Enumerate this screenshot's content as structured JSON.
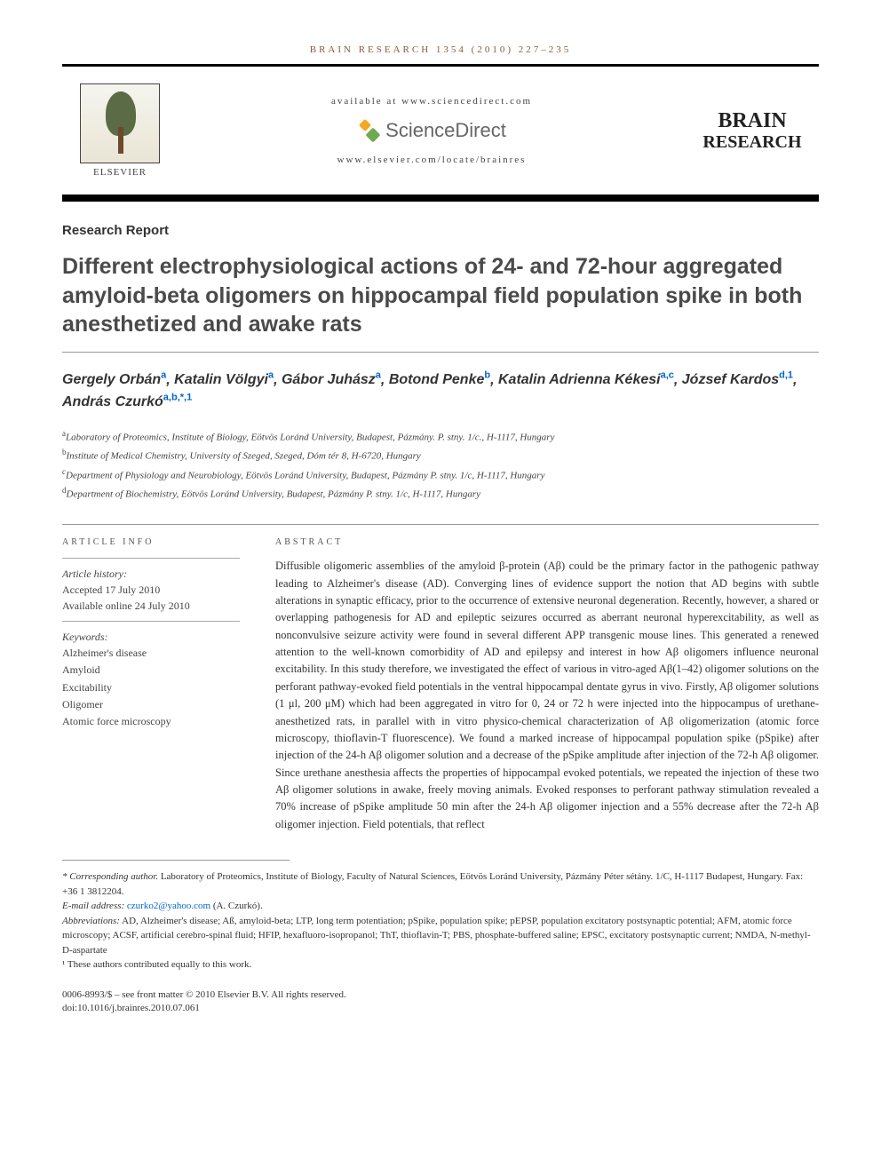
{
  "header": {
    "citation": "BRAIN RESEARCH 1354 (2010) 227–235",
    "available_at": "available at www.sciencedirect.com",
    "sciencedirect": "ScienceDirect",
    "locate": "www.elsevier.com/locate/brainres",
    "elsevier_label": "ELSEVIER",
    "journal_line1": "BRAIN",
    "journal_line2": "RESEARCH"
  },
  "article": {
    "type": "Research Report",
    "title": "Different electrophysiological actions of 24- and 72-hour aggregated amyloid-beta oligomers on hippocampal field population spike in both anesthetized and awake rats"
  },
  "authors": [
    {
      "name": "Gergely Orbán",
      "aff": "a"
    },
    {
      "name": "Katalin Völgyi",
      "aff": "a"
    },
    {
      "name": "Gábor Juhász",
      "aff": "a"
    },
    {
      "name": "Botond Penke",
      "aff": "b"
    },
    {
      "name": "Katalin Adrienna Kékesi",
      "aff": "a,c"
    },
    {
      "name": "József Kardos",
      "aff": "d,1"
    },
    {
      "name": "András Czurkó",
      "aff": "a,b,*,1"
    }
  ],
  "affiliations": [
    {
      "sup": "a",
      "text": "Laboratory of Proteomics, Institute of Biology, Eötvös Loránd University, Budapest, Pázmány. P. stny. 1/c., H-1117, Hungary"
    },
    {
      "sup": "b",
      "text": "Institute of Medical Chemistry, University of Szeged, Szeged, Dóm tér 8, H-6720, Hungary"
    },
    {
      "sup": "c",
      "text": "Department of Physiology and Neurobiology, Eötvös Loránd University, Budapest, Pázmány P. stny. 1/c, H-1117, Hungary"
    },
    {
      "sup": "d",
      "text": "Department of Biochemistry, Eötvös Loránd University, Budapest, Pázmány P. stny. 1/c, H-1117, Hungary"
    }
  ],
  "article_info": {
    "label": "ARTICLE INFO",
    "history_label": "Article history:",
    "accepted": "Accepted 17 July 2010",
    "online": "Available online 24 July 2010",
    "keywords_label": "Keywords:",
    "keywords": [
      "Alzheimer's disease",
      "Amyloid",
      "Excitability",
      "Oligomer",
      "Atomic force microscopy"
    ]
  },
  "abstract": {
    "label": "ABSTRACT",
    "text": "Diffusible oligomeric assemblies of the amyloid β-protein (Aβ) could be the primary factor in the pathogenic pathway leading to Alzheimer's disease (AD). Converging lines of evidence support the notion that AD begins with subtle alterations in synaptic efficacy, prior to the occurrence of extensive neuronal degeneration. Recently, however, a shared or overlapping pathogenesis for AD and epileptic seizures occurred as aberrant neuronal hyperexcitability, as well as nonconvulsive seizure activity were found in several different APP transgenic mouse lines. This generated a renewed attention to the well-known comorbidity of AD and epilepsy and interest in how Aβ oligomers influence neuronal excitability. In this study therefore, we investigated the effect of various in vitro-aged Aβ(1–42) oligomer solutions on the perforant pathway-evoked field potentials in the ventral hippocampal dentate gyrus in vivo. Firstly, Aβ oligomer solutions (1 μl, 200 μM) which had been aggregated in vitro for 0, 24 or 72 h were injected into the hippocampus of urethane-anesthetized rats, in parallel with in vitro physico-chemical characterization of Aβ oligomerization (atomic force microscopy, thioflavin-T fluorescence). We found a marked increase of hippocampal population spike (pSpike) after injection of the 24-h Aβ oligomer solution and a decrease of the pSpike amplitude after injection of the 72-h Aβ oligomer. Since urethane anesthesia affects the properties of hippocampal evoked potentials, we repeated the injection of these two Aβ oligomer solutions in awake, freely moving animals. Evoked responses to perforant pathway stimulation revealed a 70% increase of pSpike amplitude 50 min after the 24-h Aβ oligomer injection and a 55% decrease after the 72-h Aβ oligomer injection. Field potentials, that reflect"
  },
  "footnotes": {
    "corresponding_label": "* Corresponding author.",
    "corresponding_text": "Laboratory of Proteomics, Institute of Biology, Faculty of Natural Sciences, Eötvös Loránd University, Pázmány Péter sétány. 1/C, H-1117 Budapest, Hungary. Fax: +36 1 3812204.",
    "email_label": "E-mail address:",
    "email": "czurko2@yahoo.com",
    "email_author": "(A. Czurkó).",
    "abbrev_label": "Abbreviations:",
    "abbrev_text": "AD, Alzheimer's disease; Aß, amyloid-beta; LTP, long term potentiation; pSpike, population spike; pEPSP, population excitatory postsynaptic potential; AFM, atomic force microscopy; ACSF, artificial cerebro-spinal fluid; HFIP, hexafluoro-isopropanol; ThT, thioflavin-T; PBS, phosphate-buffered saline; EPSC, excitatory postsynaptic current; NMDA, N-methyl-D-aspartate",
    "equal_contrib": "¹ These authors contributed equally to this work."
  },
  "copyright": {
    "line1": "0006-8993/$ – see front matter © 2010 Elsevier B.V. All rights reserved.",
    "line2": "doi:10.1016/j.brainres.2010.07.061"
  },
  "colors": {
    "link": "#0066cc",
    "citation": "#8a5a3a"
  }
}
